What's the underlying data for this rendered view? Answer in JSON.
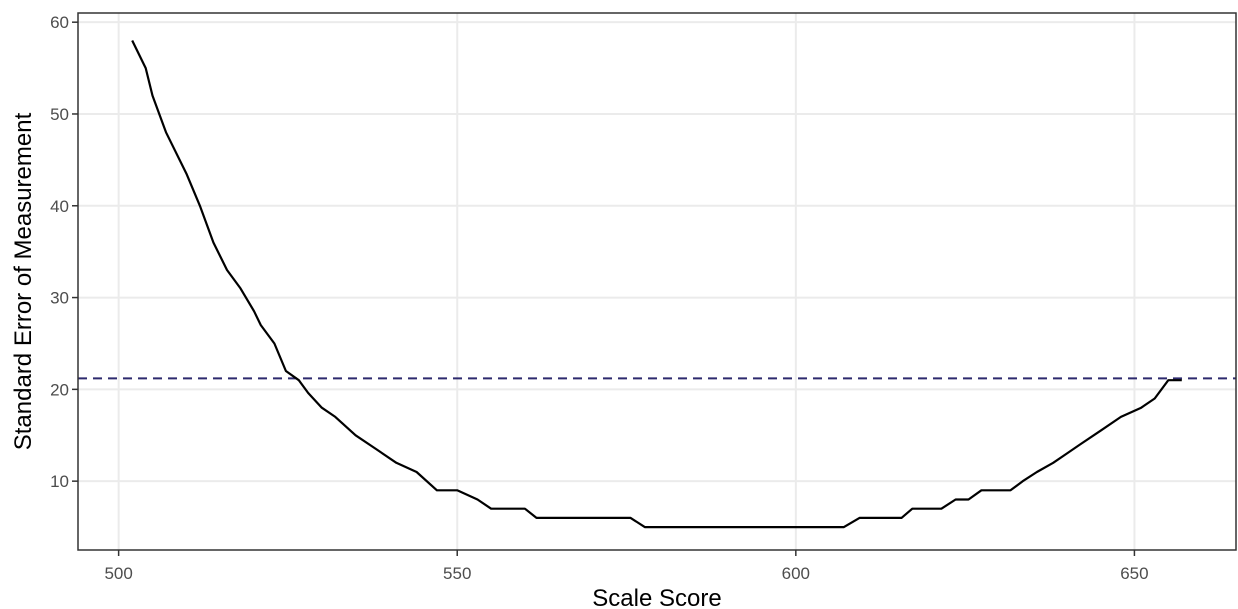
{
  "chart_data": {
    "type": "line",
    "xlabel": "Scale Score",
    "ylabel": "Standard Error of Measurement",
    "xlim": [
      494,
      665
    ],
    "ylim": [
      2.5,
      61
    ],
    "x_ticks": [
      500,
      550,
      600,
      650
    ],
    "y_ticks": [
      10,
      20,
      30,
      40,
      50,
      60
    ],
    "grid": true,
    "reference_line": {
      "y": 21.2,
      "color": "#2d2a6e",
      "style": "dashed"
    },
    "series": [
      {
        "color": "#000000",
        "x": [
          502,
          504,
          505,
          507,
          510,
          512,
          514,
          516,
          518,
          520,
          521,
          523,
          524.7,
          526.6,
          528,
          530,
          532,
          535,
          538,
          541,
          544,
          547,
          550,
          553,
          555,
          557,
          560,
          561.7,
          563.7,
          566,
          569,
          572,
          575.6,
          577.7,
          580,
          590,
          600,
          607.1,
          609.4,
          612,
          615.6,
          617.2,
          619.4,
          621.5,
          623.6,
          625.5,
          627.4,
          629.6,
          631.7,
          633.5,
          635.6,
          638,
          640,
          642,
          645,
          648,
          651,
          653,
          655,
          657
        ],
        "y": [
          58,
          55,
          52,
          48,
          43.5,
          40,
          36,
          33,
          31,
          28.5,
          27,
          25,
          22,
          21,
          19.6,
          18,
          17,
          15,
          13.5,
          12,
          11,
          9,
          9,
          8,
          7,
          7,
          7,
          6,
          6,
          6,
          6,
          6,
          6,
          5,
          5,
          5,
          5,
          5,
          6,
          6,
          6,
          7,
          7,
          7,
          8,
          8,
          9,
          9,
          9,
          10,
          11,
          12,
          13,
          14,
          15.5,
          17,
          18,
          19,
          21,
          21
        ]
      }
    ]
  }
}
